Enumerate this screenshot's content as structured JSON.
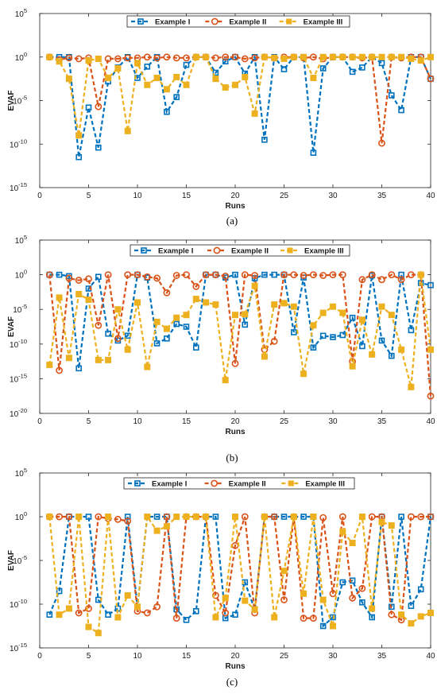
{
  "colors": {
    "Example I": "#0072BD",
    "Example II": "#D95319",
    "Example III": "#EDB120"
  },
  "chart_data": [
    {
      "type": "line",
      "caption": "(a)",
      "xlabel": "Runs",
      "ylabel": "EVAF",
      "yscale": "log",
      "xlim": [
        0,
        40
      ],
      "xticks": [
        "0",
        "5",
        "10",
        "15",
        "20",
        "25",
        "30",
        "35",
        "40"
      ],
      "ylim_exp": [
        -15,
        5
      ],
      "yticks": [
        "10^-15",
        "10^-10",
        "10^-5",
        "10^0",
        "10^5"
      ],
      "legend_position": "top",
      "x": [
        1,
        2,
        3,
        4,
        5,
        6,
        7,
        8,
        9,
        10,
        11,
        12,
        13,
        14,
        15,
        16,
        17,
        18,
        19,
        20,
        21,
        22,
        23,
        24,
        25,
        26,
        27,
        28,
        29,
        30,
        31,
        32,
        33,
        34,
        35,
        36,
        37,
        38,
        39,
        40
      ],
      "series": [
        {
          "name": "Example I",
          "marker": "square",
          "log10_values": [
            0,
            0,
            0,
            -11.5,
            -5.8,
            -10.4,
            -2.8,
            -1.2,
            0,
            -2.4,
            -1.1,
            0,
            -6.3,
            -4.6,
            -0.9,
            0,
            0,
            -1.8,
            -0.5,
            0,
            -1.9,
            0,
            -9.5,
            0,
            -1.4,
            0,
            0,
            -11,
            -1.3,
            0,
            0,
            -1.7,
            -1.2,
            0,
            -0.7,
            -4.4,
            -6.1,
            0,
            0,
            -2.5
          ]
        },
        {
          "name": "Example II",
          "marker": "circle",
          "log10_values": [
            0,
            -0.3,
            -0.1,
            -0.2,
            -0.1,
            -5.7,
            -0.2,
            -0.2,
            -0.1,
            -0.1,
            0,
            -0.1,
            0,
            -0.1,
            -0.1,
            0,
            0,
            -0.1,
            0,
            0,
            -0.2,
            -0.1,
            0,
            -0.1,
            0,
            0,
            -0.1,
            0,
            -0.2,
            0,
            0,
            0,
            -0.1,
            0,
            -9.9,
            0,
            -0.1,
            0,
            0,
            -2.5
          ]
        },
        {
          "name": "Example III",
          "marker": "filled-square",
          "log10_values": [
            0,
            -0.5,
            -2.5,
            -9,
            -0.4,
            -0.2,
            -2.4,
            -1.3,
            -8.5,
            -0.7,
            -3.2,
            -2.4,
            -3.7,
            -2.3,
            -3.2,
            0,
            0,
            -2.5,
            -3.5,
            -3.2,
            -2.3,
            -6.5,
            0,
            -0.1,
            -0.2,
            0,
            0,
            -2.4,
            0,
            0,
            0,
            0,
            0,
            0,
            0,
            0,
            0,
            -0.2,
            -0.4,
            0
          ]
        }
      ]
    },
    {
      "type": "line",
      "caption": "(b)",
      "xlabel": "Runs",
      "ylabel": "EVAF",
      "yscale": "log",
      "xlim": [
        0,
        40
      ],
      "xticks": [
        "0",
        "5",
        "10",
        "15",
        "20",
        "25",
        "30",
        "35",
        "40"
      ],
      "ylim_exp": [
        -20,
        5
      ],
      "yticks": [
        "10^-20",
        "10^-15",
        "10^-10",
        "10^-5",
        "10^0",
        "10^5"
      ],
      "legend_position": "top",
      "x": [
        1,
        2,
        3,
        4,
        5,
        6,
        7,
        8,
        9,
        10,
        11,
        12,
        13,
        14,
        15,
        16,
        17,
        18,
        19,
        20,
        21,
        22,
        23,
        24,
        25,
        26,
        27,
        28,
        29,
        30,
        31,
        32,
        33,
        34,
        35,
        36,
        37,
        38,
        39,
        40
      ],
      "series": [
        {
          "name": "Example I",
          "marker": "square",
          "log10_values": [
            0,
            0,
            -0.2,
            -13.5,
            -2,
            -0.3,
            -8.5,
            -9.5,
            -8.8,
            0,
            -0.4,
            -9.9,
            -9.2,
            -7.1,
            -7.5,
            -10.5,
            0,
            0,
            -0.4,
            0,
            -7.2,
            -0.5,
            0,
            0,
            0,
            -8.3,
            -0.4,
            -10.5,
            -8.8,
            -9,
            -8.7,
            -6.2,
            -10.3,
            -0.1,
            -9.5,
            -11.7,
            0,
            -8,
            -1.2,
            -1.5
          ]
        },
        {
          "name": "Example II",
          "marker": "circle",
          "log10_values": [
            0,
            -13.8,
            -0.5,
            -0.8,
            -0.6,
            -7.3,
            0,
            -9.2,
            0,
            0,
            -0.3,
            -0.5,
            -2.6,
            -0.1,
            0,
            -1.7,
            0,
            0,
            -0.2,
            -12.8,
            0,
            -0.1,
            -10.8,
            -9.6,
            0,
            0,
            -0.1,
            0,
            -0.1,
            0,
            0,
            -12.5,
            -0.7,
            0,
            -0.7,
            0,
            -0.7,
            0,
            0,
            -17.5
          ]
        },
        {
          "name": "Example III",
          "marker": "filled-square",
          "log10_values": [
            -13,
            -3.3,
            -12,
            -2.8,
            -3.6,
            -12.3,
            -12.3,
            -5,
            -10.8,
            -4,
            -13.3,
            -6.8,
            -7.8,
            -6.2,
            -5.8,
            -3.5,
            -4,
            -4.3,
            -15.2,
            -5.8,
            -5.7,
            -1.6,
            -11.8,
            -4.3,
            -4.1,
            -4.6,
            -14.3,
            -7.3,
            -5.5,
            -4.6,
            -5.5,
            -13.2,
            -6.5,
            -11.5,
            -4.6,
            -5.8,
            -10.8,
            -16.2,
            0,
            -10.8
          ]
        }
      ]
    },
    {
      "type": "line",
      "caption": "(c)",
      "xlabel": "Runs",
      "ylabel": "EVAF",
      "yscale": "log",
      "xlim": [
        0,
        40
      ],
      "xticks": [
        "0",
        "5",
        "10",
        "15",
        "20",
        "25",
        "30",
        "35",
        "40"
      ],
      "ylim_exp": [
        -15,
        5
      ],
      "yticks": [
        "10^-15",
        "10^-10",
        "10^-5",
        "10^0",
        "10^5"
      ],
      "legend_position": "top",
      "x": [
        1,
        2,
        3,
        4,
        5,
        6,
        7,
        8,
        9,
        10,
        11,
        12,
        13,
        14,
        15,
        16,
        17,
        18,
        19,
        20,
        21,
        22,
        23,
        24,
        25,
        26,
        27,
        28,
        29,
        30,
        31,
        32,
        33,
        34,
        35,
        36,
        37,
        38,
        39,
        40
      ],
      "series": [
        {
          "name": "Example I",
          "marker": "square",
          "log10_values": [
            -11.2,
            -8.5,
            0,
            0,
            0,
            -9.5,
            -11.2,
            -10.5,
            0,
            -10.3,
            0,
            0,
            0,
            -10.6,
            -11.8,
            -10.8,
            0,
            0,
            -11.6,
            -11.2,
            -7.5,
            -10.6,
            0,
            0,
            0,
            0,
            0,
            0,
            -12.5,
            -11.5,
            -7.5,
            -7.3,
            -9.8,
            -11.5,
            0,
            -10.3,
            0,
            -10.2,
            -8.3,
            0
          ]
        },
        {
          "name": "Example II",
          "marker": "circle",
          "log10_values": [
            0,
            0,
            0,
            -11,
            -10.5,
            0,
            -0.2,
            -0.3,
            -0.5,
            -10.8,
            -11,
            -10.3,
            0,
            -11.6,
            0,
            0,
            0,
            -9,
            -11,
            -3.3,
            0,
            -11,
            0,
            0,
            -9.5,
            0,
            -11.6,
            -11.6,
            -0.1,
            -8.8,
            0,
            -9.3,
            -8.2,
            0,
            0,
            -11.2,
            -11.8,
            0,
            0,
            0
          ]
        },
        {
          "name": "Example III",
          "marker": "filled-square",
          "log10_values": [
            0,
            -11.2,
            -10.5,
            0,
            -12.6,
            -13.3,
            0,
            -11.5,
            -9,
            -10.3,
            0,
            -1.6,
            -1.1,
            0,
            0,
            0,
            0,
            -11.5,
            -9.3,
            0,
            -9.6,
            -10.6,
            0,
            -11.5,
            -6.2,
            0,
            -8.8,
            0,
            -9.5,
            -12.5,
            -1.7,
            -3,
            0,
            -10.5,
            -0.6,
            -1,
            -11.2,
            -12.2,
            -11.4,
            -11
          ]
        }
      ]
    }
  ]
}
